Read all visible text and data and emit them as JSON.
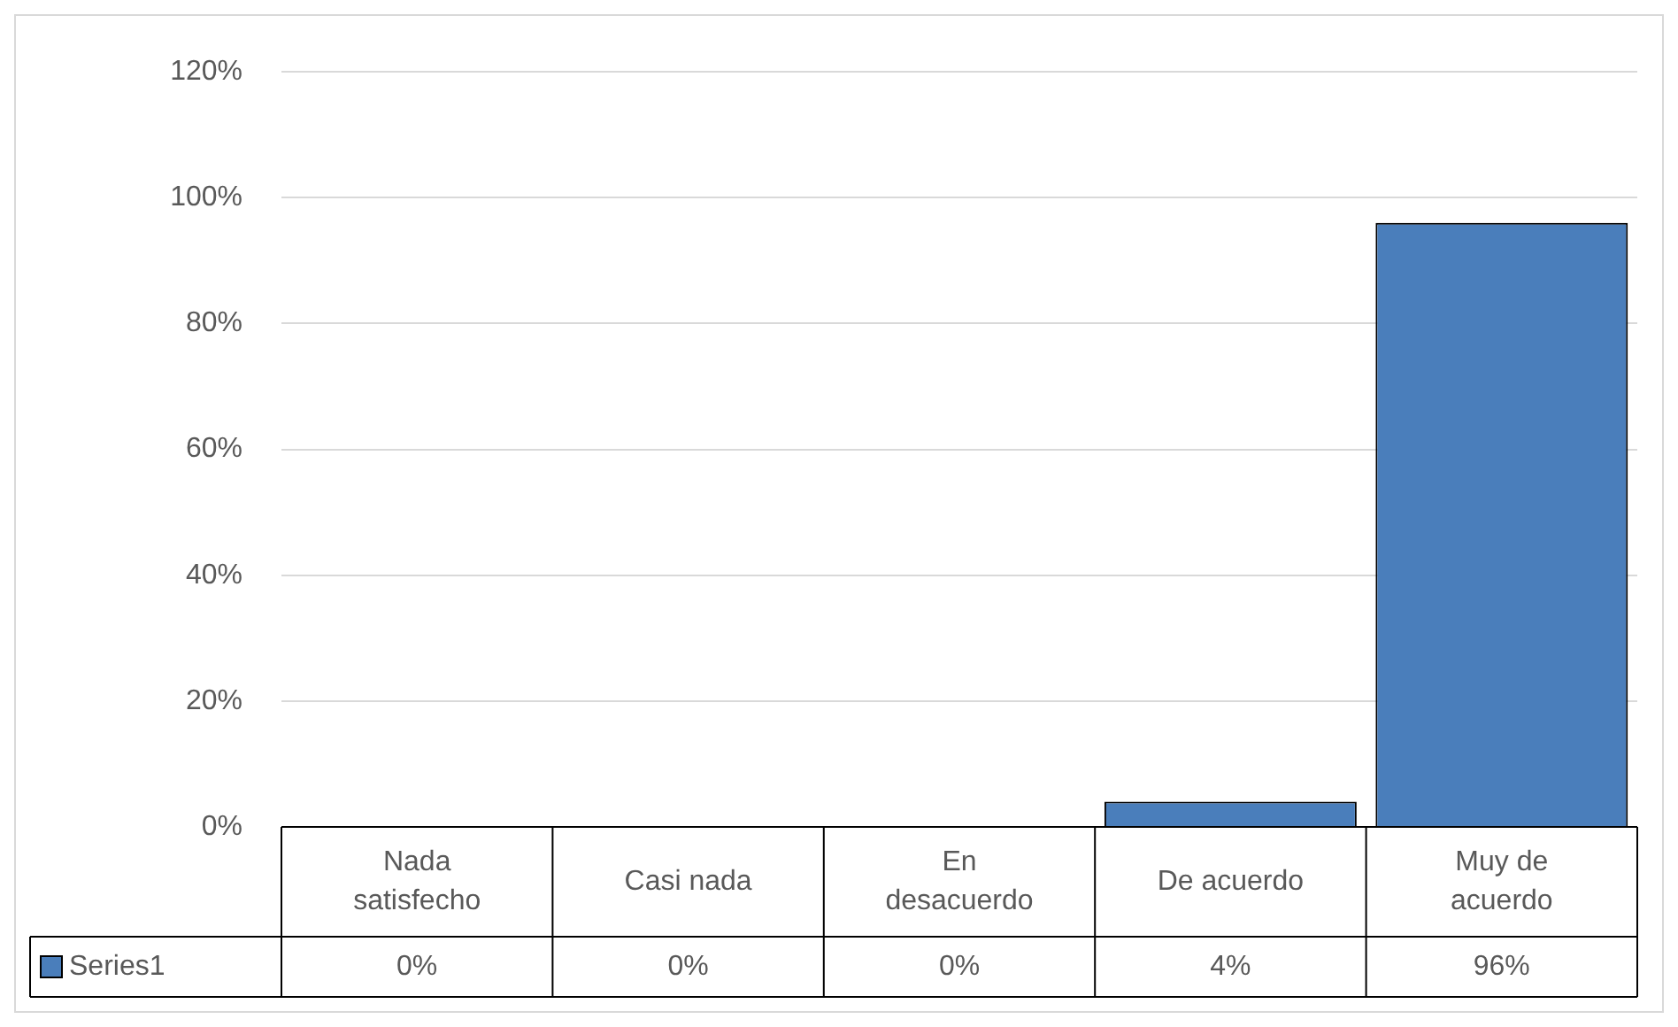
{
  "chart_data": {
    "type": "bar",
    "categories": [
      "Nada satisfecho",
      "Casi nada",
      "En desacuerdo",
      "De acuerdo",
      "Muy de acuerdo"
    ],
    "series": [
      {
        "name": "Series1",
        "color": "#4a7ebb",
        "values": [
          0,
          0,
          0,
          4,
          96
        ],
        "value_labels": [
          "0%",
          "0%",
          "0%",
          "4%",
          "96%"
        ]
      }
    ],
    "ylim": [
      0,
      120
    ],
    "yticks": [
      {
        "value": 0,
        "label": "0%"
      },
      {
        "value": 20,
        "label": "20%"
      },
      {
        "value": 40,
        "label": "40%"
      },
      {
        "value": 60,
        "label": "60%"
      },
      {
        "value": 80,
        "label": "80%"
      },
      {
        "value": 100,
        "label": "100%"
      },
      {
        "value": 120,
        "label": "120%"
      }
    ],
    "grid": "y"
  }
}
